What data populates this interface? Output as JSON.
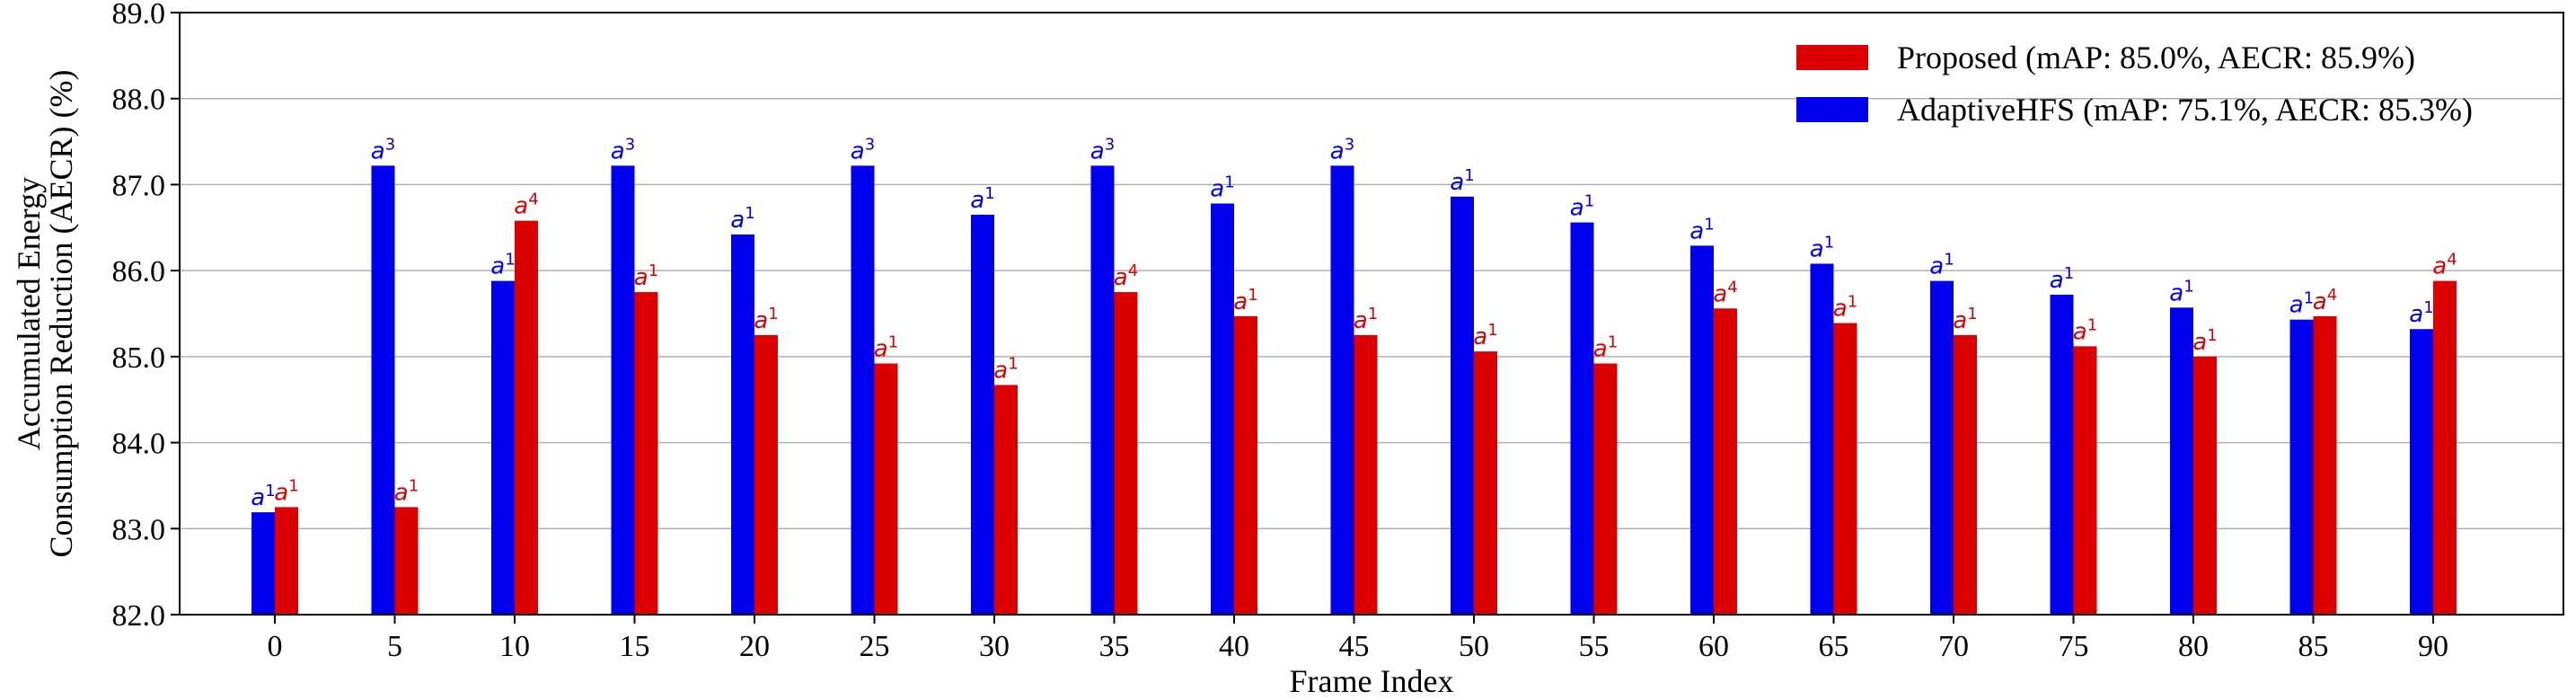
{
  "chart_data": {
    "type": "bar",
    "xlabel": "Frame Index",
    "ylabel_lines": [
      "Accumulated Energy",
      "Consumption Reduction (AECR) (%)"
    ],
    "ylim": [
      82.0,
      89.0
    ],
    "yticks": [
      "82.0",
      "83.0",
      "84.0",
      "85.0",
      "86.0",
      "87.0",
      "88.0",
      "89.0"
    ],
    "categories": [
      "0",
      "5",
      "10",
      "15",
      "20",
      "25",
      "30",
      "35",
      "40",
      "45",
      "50",
      "55",
      "60",
      "65",
      "70",
      "75",
      "80",
      "85",
      "90"
    ],
    "grid": "horizontal",
    "legend_position": "top-right",
    "series": [
      {
        "name": "Proposed (mAP: 85.0%, AECR: 85.9%)",
        "color": "#dd0000",
        "values": [
          83.25,
          83.25,
          86.58,
          85.75,
          85.25,
          84.92,
          84.67,
          85.75,
          85.47,
          85.25,
          85.06,
          84.92,
          85.56,
          85.39,
          85.25,
          85.12,
          85.0,
          85.47,
          85.88
        ],
        "labels": [
          "a",
          "a",
          "a",
          "a",
          "a",
          "a",
          "a",
          "a",
          "a",
          "a",
          "a",
          "a",
          "a",
          "a",
          "a",
          "a",
          "a",
          "a",
          "a"
        ],
        "label_sup": [
          "1",
          "1",
          "4",
          "1",
          "1",
          "1",
          "1",
          "4",
          "1",
          "1",
          "1",
          "1",
          "4",
          "1",
          "1",
          "1",
          "1",
          "4",
          "4"
        ]
      },
      {
        "name": "AdaptiveHFS (mAP: 75.1%, AECR: 85.3%)",
        "color": "#0000ee",
        "values": [
          83.19,
          87.22,
          85.88,
          87.22,
          86.42,
          87.22,
          86.65,
          87.22,
          86.78,
          87.22,
          86.86,
          86.56,
          86.29,
          86.08,
          85.88,
          85.72,
          85.57,
          85.43,
          85.32
        ],
        "labels": [
          "a",
          "a",
          "a",
          "a",
          "a",
          "a",
          "a",
          "a",
          "a",
          "a",
          "a",
          "a",
          "a",
          "a",
          "a",
          "a",
          "a",
          "a",
          "a"
        ],
        "label_sup": [
          "1",
          "3",
          "1",
          "3",
          "1",
          "3",
          "1",
          "3",
          "1",
          "3",
          "1",
          "1",
          "1",
          "1",
          "1",
          "1",
          "1",
          "1",
          "1"
        ]
      }
    ]
  }
}
